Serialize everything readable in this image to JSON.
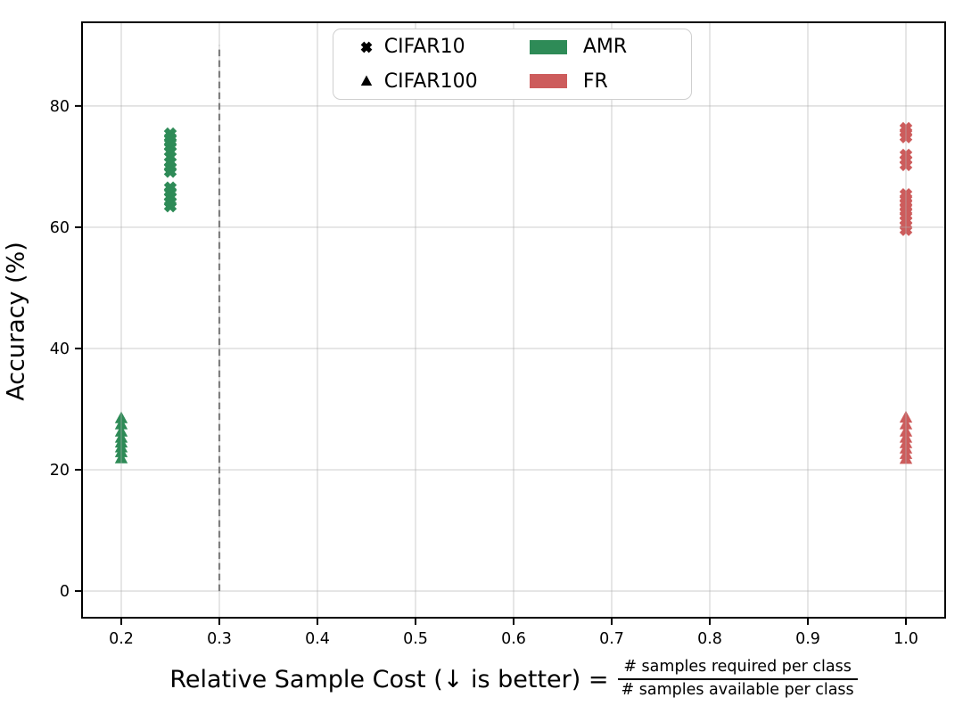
{
  "chart_data": {
    "type": "scatter",
    "title": "",
    "ylabel": "Accuracy (%)",
    "xlabel": {
      "main": "Relative Sample Cost (↓ is better) =",
      "fraction_numerator": "# samples required per class",
      "fraction_denominator": "# samples available per class"
    },
    "xlim": [
      0.16,
      1.04
    ],
    "ylim": [
      -4.4,
      93.8
    ],
    "xticks": [
      0.2,
      0.3,
      0.4,
      0.5,
      0.6,
      0.7,
      0.8,
      0.9,
      1.0
    ],
    "yticks": [
      0,
      20,
      40,
      60,
      80
    ],
    "grid": true,
    "grid_color": "#b0b0b0",
    "grid_opacity": 0.45,
    "vline": {
      "x": 0.3,
      "y0": 0,
      "y1": 90,
      "style": "dashed",
      "color": "#7f7f7f"
    },
    "legend": {
      "position": "upper center",
      "marker_entries": [
        {
          "marker": "x",
          "label": "CIFAR10"
        },
        {
          "marker": "triangle",
          "label": "CIFAR100"
        }
      ],
      "color_entries": [
        {
          "color": "#2e8b57",
          "label": "AMR"
        },
        {
          "color": "#cd5c5c",
          "label": "FR"
        }
      ]
    },
    "series": [
      {
        "name": "AMR on CIFAR10",
        "method": "AMR",
        "dataset": "CIFAR10",
        "marker": "x",
        "color": "#2e8b57",
        "x": 0.25,
        "y": [
          75.4,
          74.7,
          74.0,
          73.3,
          72.5,
          71.6,
          70.7,
          69.9,
          69.2,
          66.5,
          65.8,
          65.0,
          64.2,
          63.5
        ]
      },
      {
        "name": "AMR on CIFAR100",
        "method": "AMR",
        "dataset": "CIFAR100",
        "marker": "triangle",
        "color": "#2e8b57",
        "x": 0.2,
        "y": [
          28.5,
          27.5,
          26.3,
          25.3,
          24.5,
          23.7,
          22.9,
          21.9
        ]
      },
      {
        "name": "FR on CIFAR10",
        "method": "FR",
        "dataset": "CIFAR10",
        "marker": "x",
        "color": "#cd5c5c",
        "x": 1.0,
        "y": [
          76.3,
          75.6,
          74.9,
          71.9,
          71.1,
          70.3,
          65.4,
          64.7,
          64.0,
          63.3,
          62.6,
          61.9,
          61.1,
          60.3,
          59.6
        ]
      },
      {
        "name": "FR on CIFAR100",
        "method": "FR",
        "dataset": "CIFAR100",
        "marker": "triangle",
        "color": "#cd5c5c",
        "x": 1.0,
        "y": [
          28.6,
          27.5,
          26.3,
          25.3,
          24.4,
          23.5,
          22.6,
          21.8
        ]
      }
    ]
  }
}
